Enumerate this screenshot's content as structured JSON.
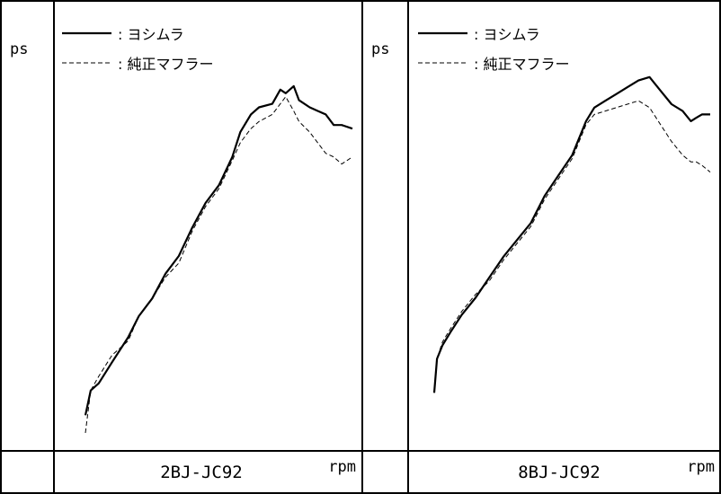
{
  "chart_data": [
    {
      "type": "line",
      "title": "",
      "model": "2BJ-JC92",
      "xlabel": "rpm",
      "ylabel": "ps",
      "xlim": [
        0,
        100
      ],
      "ylim": [
        0,
        100
      ],
      "ticks": "none",
      "grid": false,
      "legend_position": "top-left",
      "series": [
        {
          "name": "ヨシムラ",
          "style": "solid",
          "color": "#000000",
          "x": [
            0,
            2,
            5,
            10,
            16,
            20,
            25,
            30,
            35,
            40,
            45,
            50,
            55,
            58,
            62,
            65,
            70,
            73,
            75,
            78,
            80,
            84,
            87,
            90,
            93,
            96,
            100
          ],
          "y": [
            5,
            12,
            14,
            20,
            27,
            33,
            38,
            45,
            50,
            58,
            65,
            70,
            78,
            85,
            90,
            92,
            93,
            97,
            96,
            98,
            94,
            92,
            91,
            90,
            87,
            87,
            86
          ]
        },
        {
          "name": "純正マフラー",
          "style": "dashed",
          "color": "#000000",
          "x": [
            0,
            2,
            5,
            10,
            16,
            20,
            25,
            30,
            35,
            40,
            45,
            50,
            55,
            58,
            62,
            65,
            70,
            73,
            75,
            78,
            80,
            84,
            87,
            90,
            93,
            96,
            100
          ],
          "y": [
            0,
            12,
            16,
            22,
            26,
            33,
            38,
            44,
            48,
            57,
            64,
            69,
            77,
            82,
            86,
            88,
            90,
            93,
            95,
            91,
            88,
            85,
            82,
            79,
            78,
            76,
            78
          ]
        }
      ]
    },
    {
      "type": "line",
      "title": "",
      "model": "8BJ-JC92",
      "xlabel": "rpm",
      "ylabel": "ps",
      "xlim": [
        0,
        100
      ],
      "ylim": [
        0,
        100
      ],
      "ticks": "none",
      "grid": false,
      "legend_position": "top-left",
      "series": [
        {
          "name": "ヨシムラ",
          "style": "solid",
          "color": "#000000",
          "x": [
            0,
            1,
            3,
            6,
            10,
            15,
            20,
            25,
            30,
            35,
            40,
            45,
            50,
            55,
            58,
            62,
            66,
            70,
            74,
            78,
            82,
            86,
            90,
            93,
            95,
            97,
            100
          ],
          "y": [
            6,
            16,
            20,
            24,
            29,
            34,
            40,
            46,
            51,
            56,
            64,
            70,
            76,
            86,
            90,
            92,
            94,
            96,
            98,
            99,
            95,
            91,
            89,
            86,
            87,
            88,
            88
          ]
        },
        {
          "name": "純正マフラー",
          "style": "dashed",
          "color": "#000000",
          "x": [
            0,
            1,
            3,
            6,
            10,
            15,
            20,
            25,
            30,
            35,
            40,
            45,
            50,
            55,
            58,
            62,
            66,
            70,
            74,
            78,
            82,
            86,
            90,
            93,
            95,
            97,
            100
          ],
          "y": [
            6,
            16,
            21,
            25,
            30,
            35,
            39,
            45,
            50,
            55,
            63,
            69,
            75,
            85,
            88,
            89,
            90,
            91,
            92,
            90,
            85,
            80,
            76,
            74,
            74,
            73,
            71
          ]
        }
      ]
    }
  ]
}
